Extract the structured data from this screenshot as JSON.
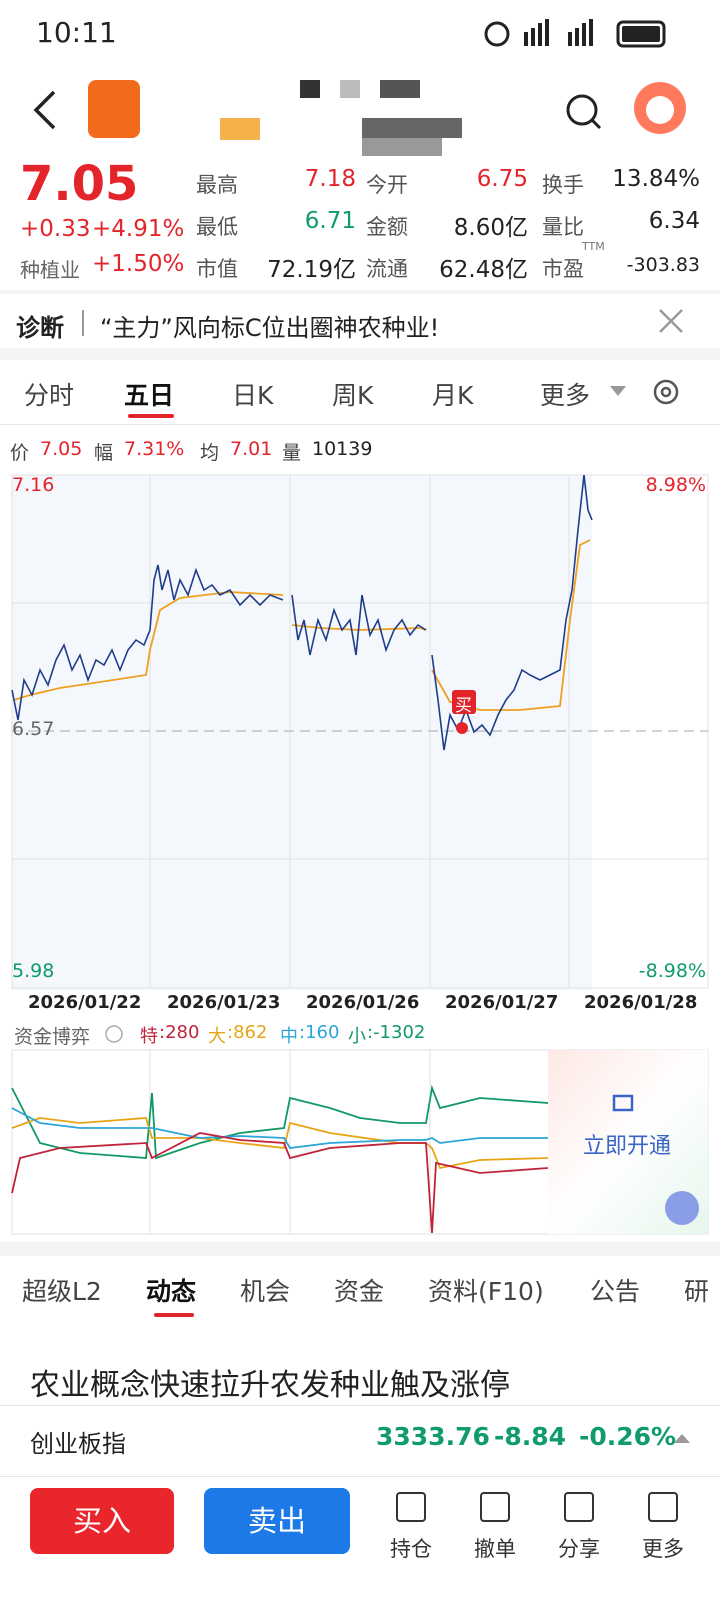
{
  "status": {
    "time": "10:11"
  },
  "quote": {
    "price": "7.05",
    "change": "+0.33",
    "change_pct": "+4.91%",
    "sector": "种植业",
    "sector_pct": "+1.50%",
    "stats": [
      {
        "label": "最高",
        "value": "7.18"
      },
      {
        "label": "今开",
        "value": "6.75"
      },
      {
        "label": "换手",
        "value": "13.84%"
      },
      {
        "label": "最低",
        "value": "6.71"
      },
      {
        "label": "金额",
        "value": "8.60亿"
      },
      {
        "label": "量比",
        "value": "6.34"
      },
      {
        "label": "市值",
        "value": "72.19亿"
      },
      {
        "label": "流通",
        "value": "62.48亿"
      },
      {
        "label": "市盈",
        "sup": "TTM",
        "value": "-303.83"
      }
    ]
  },
  "diagnosis": {
    "label": "诊断",
    "text": "“主力”风向标C位出圈神农种业!"
  },
  "chart_tabs": [
    "分时",
    "五日",
    "日K",
    "周K",
    "月K",
    "更多"
  ],
  "chart_info": [
    {
      "label": "价",
      "value": "7.05"
    },
    {
      "label": "幅",
      "value": "7.31%"
    },
    {
      "label": "均",
      "value": "7.01"
    },
    {
      "label": "量",
      "value": "10139"
    }
  ],
  "price_axis": {
    "top": "7.16",
    "mid": "6.57",
    "bottom": "5.98",
    "top_pct": "8.98%",
    "bottom_pct": "-8.98%"
  },
  "dates": [
    "2026/01/22",
    "2026/01/23",
    "2026/01/26",
    "2026/01/27",
    "2026/01/28"
  ],
  "buy_marker": "买",
  "fund": {
    "title": "资金博弈",
    "items": [
      {
        "name": "特",
        "value": ":280"
      },
      {
        "name": "大",
        "value": ":862"
      },
      {
        "name": "中",
        "value": ":160"
      },
      {
        "name": "小",
        "value": ":-1302"
      }
    ],
    "unlock": "立即开通"
  },
  "info_tabs": [
    "超级L2",
    "动态",
    "机会",
    "资金",
    "资料(F10)",
    "公告",
    "研"
  ],
  "news": {
    "headline": "农业概念快速拉升农发种业触及涨停"
  },
  "index_bar": {
    "name": "创业板指",
    "value": "3333.76",
    "change": "-8.84",
    "pct": "-0.26%"
  },
  "actions": {
    "buy": "买入",
    "sell": "卖出",
    "tools": [
      "持仓",
      "撤单",
      "分享",
      "更多"
    ]
  }
}
